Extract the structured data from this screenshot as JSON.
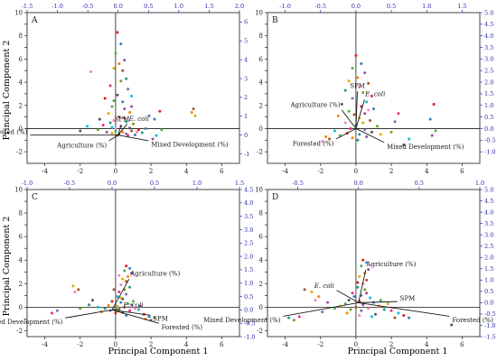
{
  "figure": {
    "ylabel": "Principal Component 2",
    "xlabel": "Principal Component 1",
    "colors": {
      "axis": "#1a1a1a",
      "secondary_axis": "#2b2bb0",
      "point_palette": [
        "#e41a1c",
        "#377eb8",
        "#4daf4a",
        "#984ea3",
        "#ff7f00",
        "#d4b000",
        "#a65628",
        "#f781bf",
        "#1b9e77",
        "#66a61e",
        "#e7298a",
        "#7570b3",
        "#00bcd4",
        "#555555"
      ]
    }
  },
  "chart_data": [
    {
      "type": "scatter",
      "panel_label": "A",
      "xlim": [
        -5,
        7
      ],
      "ylim": [
        -3,
        10
      ],
      "x_ticks": [
        -4,
        -2,
        0,
        2,
        4,
        6
      ],
      "y_ticks": [
        -2,
        -1,
        0,
        1,
        2,
        3,
        4,
        5,
        6,
        7,
        8,
        9,
        10
      ],
      "top_lim": [
        -1.5,
        2.0
      ],
      "top_ticks": [
        -1.5,
        -1.0,
        -0.5,
        0.0,
        0.5,
        1.0,
        1.5,
        2.0
      ],
      "right_lim": [
        -1.5,
        6.5
      ],
      "right_ticks": [
        -1,
        0,
        1,
        2,
        3,
        4,
        5,
        6
      ],
      "loadings": [
        {
          "label": "Forested (%)",
          "top_x": -1.45,
          "right_y": 0.0
        },
        {
          "label": "Agriculture (%)",
          "top_x": -0.15,
          "right_y": -0.3
        },
        {
          "label": "SPM",
          "top_x": 0.05,
          "right_y": 0.55
        },
        {
          "label": "E. coli",
          "top_x": 0.15,
          "right_y": 0.6
        },
        {
          "label": "Mixed Development (%)",
          "top_x": 0.5,
          "right_y": -0.3
        }
      ],
      "scores": [
        [
          0.1,
          8.3
        ],
        [
          0.3,
          7.3
        ],
        [
          0.0,
          6.5
        ],
        [
          0.5,
          5.9
        ],
        [
          0.2,
          5.6
        ],
        [
          -0.1,
          5.2
        ],
        [
          0.4,
          5.0
        ],
        [
          -1.4,
          4.9
        ],
        [
          0.6,
          4.3
        ],
        [
          0.3,
          4.1
        ],
        [
          -0.3,
          3.7
        ],
        [
          0.7,
          3.4
        ],
        [
          0.9,
          2.8
        ],
        [
          0.1,
          2.9
        ],
        [
          -0.6,
          2.6
        ],
        [
          0.4,
          2.3
        ],
        [
          -0.2,
          1.9
        ],
        [
          0.5,
          1.7
        ],
        [
          0.8,
          1.4
        ],
        [
          -0.4,
          1.3
        ],
        [
          0.2,
          1.0
        ],
        [
          -0.1,
          0.7
        ],
        [
          0.6,
          0.6
        ],
        [
          1.0,
          0.4
        ],
        [
          -0.7,
          0.3
        ],
        [
          0.3,
          0.2
        ],
        [
          -0.2,
          0.1
        ],
        [
          0.8,
          0.05
        ],
        [
          1.3,
          -0.1
        ],
        [
          1.7,
          0.0
        ],
        [
          0.0,
          -0.2
        ],
        [
          -0.5,
          -0.3
        ],
        [
          0.4,
          -0.3
        ],
        [
          -0.2,
          -0.4
        ],
        [
          0.9,
          -0.2
        ],
        [
          1.2,
          -0.3
        ],
        [
          1.5,
          -0.35
        ],
        [
          -1.0,
          -0.1
        ],
        [
          0.2,
          -0.5
        ],
        [
          0.6,
          -0.45
        ],
        [
          -1.6,
          0.2
        ],
        [
          -2.0,
          -0.2
        ],
        [
          2.5,
          1.5
        ],
        [
          2.2,
          0.8
        ],
        [
          2.6,
          -0.1
        ],
        [
          2.1,
          -0.9
        ],
        [
          4.3,
          1.4
        ],
        [
          4.5,
          1.1
        ],
        [
          4.4,
          1.7
        ],
        [
          0.0,
          0.0
        ],
        [
          -0.3,
          0.5
        ],
        [
          0.1,
          -0.6
        ],
        [
          0.7,
          -0.6
        ],
        [
          1.9,
          1.1
        ],
        [
          2.3,
          -0.6
        ],
        [
          -0.9,
          0.8
        ],
        [
          0.5,
          0.9
        ],
        [
          1.1,
          -0.55
        ],
        [
          -0.1,
          2.4
        ],
        [
          0.9,
          1.9
        ]
      ]
    },
    {
      "type": "scatter",
      "panel_label": "B",
      "xlim": [
        -5,
        7
      ],
      "ylim": [
        -3,
        10
      ],
      "x_ticks": [
        -4,
        -2,
        0,
        2,
        4,
        6
      ],
      "y_ticks": [
        -2,
        -1,
        0,
        1,
        2,
        3,
        4,
        5,
        6,
        7,
        8,
        9,
        10
      ],
      "top_lim": [
        -1.25,
        1.75
      ],
      "top_ticks": [
        -1.0,
        -0.5,
        0.0,
        0.5,
        1.0,
        1.5
      ],
      "right_lim": [
        -1.5,
        5.0
      ],
      "right_ticks": [
        -1.0,
        -0.5,
        0.0,
        0.5,
        1.0,
        1.5,
        2.0,
        2.5,
        3.0,
        3.5,
        4.0,
        4.5,
        5.0
      ],
      "loadings": [
        {
          "label": "SPM",
          "top_x": 0.02,
          "right_y": 1.6
        },
        {
          "label": "E. coli",
          "top_x": 0.12,
          "right_y": 1.25
        },
        {
          "label": "Agriculture (%)",
          "top_x": -0.2,
          "right_y": 0.8
        },
        {
          "label": "Forested (%)",
          "top_x": -0.28,
          "right_y": -0.45
        },
        {
          "label": "Mixed Development (%)",
          "top_x": 0.4,
          "right_y": -0.6
        }
      ],
      "scores": [
        [
          0.0,
          6.3
        ],
        [
          0.3,
          5.6
        ],
        [
          -0.2,
          5.2
        ],
        [
          0.5,
          4.8
        ],
        [
          0.1,
          4.4
        ],
        [
          -0.4,
          4.1
        ],
        [
          0.7,
          3.9
        ],
        [
          0.2,
          3.6
        ],
        [
          -0.6,
          3.3
        ],
        [
          0.4,
          3.1
        ],
        [
          0.9,
          2.8
        ],
        [
          -0.2,
          2.6
        ],
        [
          0.6,
          2.3
        ],
        [
          -0.8,
          2.1
        ],
        [
          0.3,
          1.9
        ],
        [
          1.0,
          1.7
        ],
        [
          -0.4,
          1.5
        ],
        [
          0.5,
          1.3
        ],
        [
          -1.0,
          1.1
        ],
        [
          0.2,
          0.9
        ],
        [
          0.8,
          0.7
        ],
        [
          -0.6,
          0.5
        ],
        [
          0.0,
          0.3
        ],
        [
          1.2,
          0.2
        ],
        [
          -0.3,
          0.0
        ],
        [
          0.5,
          -0.1
        ],
        [
          -1.2,
          -0.2
        ],
        [
          0.9,
          -0.3
        ],
        [
          -0.5,
          -0.4
        ],
        [
          0.2,
          -0.5
        ],
        [
          -0.9,
          -0.6
        ],
        [
          0.6,
          -0.7
        ],
        [
          -0.2,
          -0.8
        ],
        [
          1.4,
          -0.5
        ],
        [
          -1.5,
          -0.9
        ],
        [
          -1.9,
          -1.1
        ],
        [
          0.1,
          -1.0
        ],
        [
          2.0,
          -0.3
        ],
        [
          2.4,
          1.3
        ],
        [
          2.2,
          0.6
        ],
        [
          3.0,
          -0.9
        ],
        [
          2.7,
          -1.4
        ],
        [
          4.4,
          2.1
        ],
        [
          4.2,
          0.8
        ],
        [
          4.5,
          -0.2
        ],
        [
          4.3,
          -0.6
        ],
        [
          -1.7,
          -0.7
        ],
        [
          0.4,
          0.5
        ],
        [
          -0.1,
          1.2
        ],
        [
          0.7,
          1.6
        ]
      ]
    },
    {
      "type": "scatter",
      "panel_label": "C",
      "xlim": [
        -5,
        7
      ],
      "ylim": [
        -2.5,
        10
      ],
      "x_ticks": [
        -4,
        -2,
        0,
        2,
        4,
        6
      ],
      "y_ticks": [
        -2,
        -1,
        0,
        1,
        2,
        3,
        4,
        5,
        6,
        7,
        8,
        9,
        10
      ],
      "top_lim": [
        -1.0,
        1.5
      ],
      "top_ticks": [
        -1.0,
        -0.5,
        0.0,
        0.5,
        1.0,
        1.5
      ],
      "right_lim": [
        -1.0,
        4.5
      ],
      "right_ticks": [
        -1.0,
        -0.5,
        0.0,
        0.5,
        1.0,
        1.5,
        2.0,
        2.5,
        3.0,
        3.5,
        4.0,
        4.5
      ],
      "loadings": [
        {
          "label": "Agriculture (%)",
          "top_x": 0.2,
          "right_y": 1.15
        },
        {
          "label": "E. coli",
          "top_x": 0.1,
          "right_y": 0.05
        },
        {
          "label": "SPM",
          "top_x": 0.45,
          "right_y": -0.2
        },
        {
          "label": "Forested (%)",
          "top_x": 0.55,
          "right_y": -0.5
        },
        {
          "label": "Mixed Development (%)",
          "top_x": -0.55,
          "right_y": -0.3
        }
      ],
      "scores": [
        [
          0.6,
          3.5
        ],
        [
          0.8,
          3.3
        ],
        [
          0.5,
          3.1
        ],
        [
          0.9,
          2.9
        ],
        [
          0.7,
          2.6
        ],
        [
          0.4,
          2.4
        ],
        [
          0.6,
          2.2
        ],
        [
          0.3,
          1.9
        ],
        [
          0.8,
          1.7
        ],
        [
          0.5,
          1.5
        ],
        [
          0.2,
          1.3
        ],
        [
          0.6,
          1.1
        ],
        [
          0.1,
          0.9
        ],
        [
          0.4,
          0.7
        ],
        [
          -0.2,
          0.5
        ],
        [
          0.3,
          0.4
        ],
        [
          0.7,
          0.3
        ],
        [
          0.9,
          0.2
        ],
        [
          -0.4,
          0.15
        ],
        [
          0.1,
          0.1
        ],
        [
          0.5,
          0.0
        ],
        [
          1.1,
          -0.1
        ],
        [
          -0.6,
          -0.1
        ],
        [
          0.2,
          -0.2
        ],
        [
          0.8,
          -0.3
        ],
        [
          -0.3,
          -0.3
        ],
        [
          1.3,
          -0.2
        ],
        [
          0.4,
          -0.45
        ],
        [
          1.6,
          -0.6
        ],
        [
          1.9,
          -0.8
        ],
        [
          2.2,
          -0.9
        ],
        [
          2.0,
          -1.1
        ],
        [
          1.7,
          -1.0
        ],
        [
          -2.4,
          1.8
        ],
        [
          -2.1,
          1.5
        ],
        [
          -2.3,
          1.3
        ],
        [
          -1.5,
          0.2
        ],
        [
          -2.0,
          -0.1
        ],
        [
          -3.6,
          -0.5
        ],
        [
          -3.3,
          -0.3
        ],
        [
          -1.0,
          0.0
        ],
        [
          -1.3,
          0.6
        ],
        [
          0.0,
          -0.5
        ],
        [
          0.6,
          -0.7
        ],
        [
          1.0,
          0.5
        ],
        [
          1.4,
          0.1
        ],
        [
          -0.8,
          -0.4
        ],
        [
          0.3,
          0.8
        ],
        [
          -0.1,
          1.5
        ],
        [
          0.2,
          2.7
        ]
      ]
    },
    {
      "type": "scatter",
      "panel_label": "D",
      "xlim": [
        -5,
        7
      ],
      "ylim": [
        -2.5,
        10
      ],
      "x_ticks": [
        -4,
        -2,
        0,
        2,
        4,
        6
      ],
      "y_ticks": [
        -2,
        -1,
        0,
        1,
        2,
        3,
        4,
        5,
        6,
        7,
        8,
        9,
        10
      ],
      "top_lim": [
        -0.75,
        1.0
      ],
      "top_ticks": [
        -0.5,
        0.0,
        0.5,
        1.0
      ],
      "right_lim": [
        -1.5,
        5.0
      ],
      "right_ticks": [
        -1.5,
        -1.0,
        -0.5,
        0.0,
        0.5,
        1.0,
        1.5,
        2.0,
        2.5,
        3.0,
        3.5,
        4.0,
        4.5,
        5.0
      ],
      "loadings": [
        {
          "label": "Agriculture (%)",
          "top_x": 0.06,
          "right_y": 1.45
        },
        {
          "label": "E. coli",
          "top_x": -0.18,
          "right_y": 0.55
        },
        {
          "label": "SPM",
          "top_x": 0.32,
          "right_y": 0.05
        },
        {
          "label": "Forested (%)",
          "top_x": 0.75,
          "right_y": -0.6
        },
        {
          "label": "Mixed Development (%)",
          "top_x": -0.62,
          "right_y": -0.6
        }
      ],
      "scores": [
        [
          0.4,
          4.0
        ],
        [
          0.6,
          3.8
        ],
        [
          0.3,
          3.5
        ],
        [
          0.7,
          3.2
        ],
        [
          0.5,
          2.9
        ],
        [
          0.2,
          2.6
        ],
        [
          0.6,
          2.3
        ],
        [
          0.4,
          2.0
        ],
        [
          0.1,
          1.7
        ],
        [
          0.5,
          1.5
        ],
        [
          -0.2,
          1.2
        ],
        [
          0.3,
          1.0
        ],
        [
          0.8,
          0.8
        ],
        [
          -0.4,
          0.6
        ],
        [
          0.2,
          0.5
        ],
        [
          1.0,
          0.4
        ],
        [
          -0.6,
          0.3
        ],
        [
          0.4,
          0.2
        ],
        [
          1.3,
          0.1
        ],
        [
          -0.9,
          0.1
        ],
        [
          0.0,
          0.0
        ],
        [
          0.7,
          -0.1
        ],
        [
          1.6,
          -0.2
        ],
        [
          -0.3,
          -0.2
        ],
        [
          2.0,
          -0.3
        ],
        [
          0.3,
          -0.3
        ],
        [
          2.4,
          -0.5
        ],
        [
          1.1,
          -0.6
        ],
        [
          2.7,
          -0.7
        ],
        [
          3.0,
          -0.9
        ],
        [
          -1.2,
          -0.1
        ],
        [
          -1.6,
          0.4
        ],
        [
          -2.1,
          0.9
        ],
        [
          -2.5,
          1.3
        ],
        [
          -2.9,
          1.5
        ],
        [
          -2.3,
          0.6
        ],
        [
          -3.8,
          -0.9
        ],
        [
          -3.5,
          -1.1
        ],
        [
          -3.2,
          -0.8
        ],
        [
          -1.9,
          -0.4
        ],
        [
          0.9,
          -0.8
        ],
        [
          5.4,
          -1.5
        ],
        [
          0.1,
          2.1
        ],
        [
          -0.1,
          0.9
        ],
        [
          1.4,
          0.6
        ],
        [
          0.6,
          1.2
        ],
        [
          -0.5,
          -0.5
        ],
        [
          1.8,
          0.3
        ],
        [
          2.2,
          -0.9
        ],
        [
          0.2,
          -0.7
        ]
      ]
    }
  ]
}
